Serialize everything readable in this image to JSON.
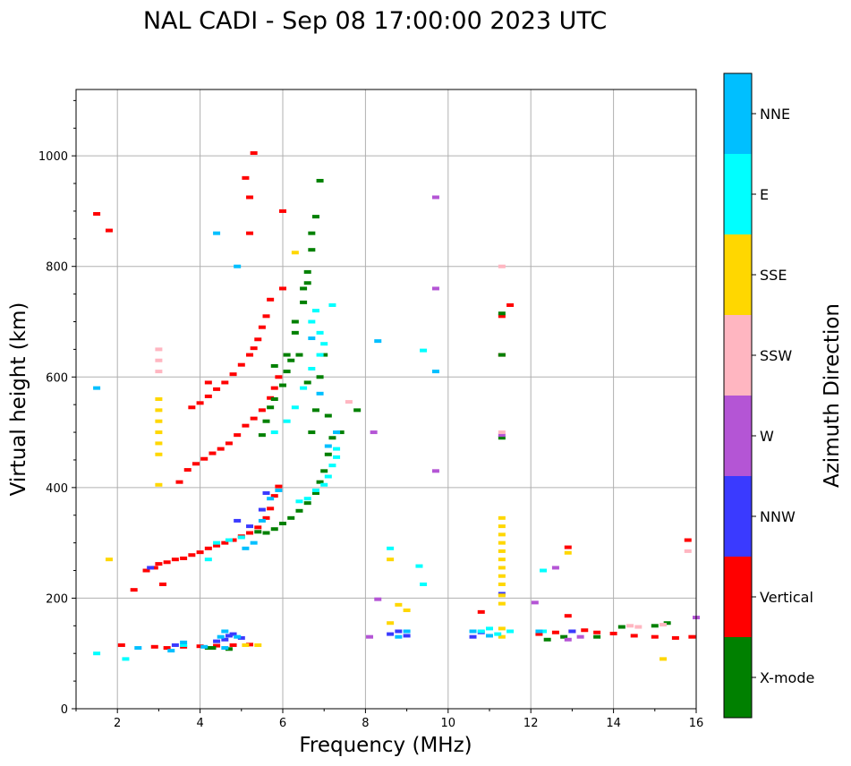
{
  "chart_data": {
    "type": "scatter",
    "title": "NAL CADI - Sep 08 17:00:00 2023 UTC",
    "xlabel": "Frequency (MHz)",
    "ylabel": "Virtual height (km)",
    "xlim": [
      1,
      16
    ],
    "ylim": [
      0,
      1120
    ],
    "xticks": [
      2,
      4,
      6,
      8,
      10,
      12,
      14,
      16
    ],
    "xtick_labels": [
      "2",
      "4",
      "6",
      "8",
      "10",
      "12",
      "14",
      "16"
    ],
    "yticks": [
      0,
      200,
      400,
      600,
      800,
      1000
    ],
    "ytick_labels": [
      "0",
      "200",
      "400",
      "600",
      "800",
      "1000"
    ],
    "grid": true,
    "colorbar": {
      "title": "Azimuth Direction",
      "categories": [
        "X-mode",
        "Vertical",
        "NNW",
        "W",
        "SSW",
        "SSE",
        "E",
        "NNE"
      ],
      "colors": {
        "X-mode": "#008000",
        "Vertical": "#ff0000",
        "NNW": "#3a3aff",
        "W": "#b455d5",
        "SSW": "#ffb6c1",
        "SSE": "#ffd700",
        "E": "#00ffff",
        "NNE": "#00bfff"
      }
    },
    "series": [
      {
        "name": "Vertical",
        "points": [
          [
            1.5,
            895
          ],
          [
            1.8,
            865
          ],
          [
            2.1,
            115
          ],
          [
            2.4,
            215
          ],
          [
            2.7,
            250
          ],
          [
            2.9,
            255
          ],
          [
            3.0,
            262
          ],
          [
            3.2,
            265
          ],
          [
            3.4,
            270
          ],
          [
            3.6,
            272
          ],
          [
            3.8,
            278
          ],
          [
            4.0,
            283
          ],
          [
            4.2,
            290
          ],
          [
            4.4,
            295
          ],
          [
            4.6,
            300
          ],
          [
            4.8,
            305
          ],
          [
            5.0,
            312
          ],
          [
            5.2,
            318
          ],
          [
            5.4,
            328
          ],
          [
            5.6,
            345
          ],
          [
            5.7,
            362
          ],
          [
            5.8,
            385
          ],
          [
            5.9,
            402
          ],
          [
            3.1,
            225
          ],
          [
            3.5,
            410
          ],
          [
            3.7,
            432
          ],
          [
            3.9,
            443
          ],
          [
            4.1,
            452
          ],
          [
            4.3,
            462
          ],
          [
            4.5,
            470
          ],
          [
            4.7,
            480
          ],
          [
            4.9,
            495
          ],
          [
            5.1,
            512
          ],
          [
            5.3,
            525
          ],
          [
            5.5,
            540
          ],
          [
            5.7,
            562
          ],
          [
            5.8,
            580
          ],
          [
            5.9,
            600
          ],
          [
            3.8,
            545
          ],
          [
            4.0,
            553
          ],
          [
            4.2,
            565
          ],
          [
            4.4,
            578
          ],
          [
            4.6,
            590
          ],
          [
            4.8,
            605
          ],
          [
            5.0,
            622
          ],
          [
            5.2,
            640
          ],
          [
            5.3,
            652
          ],
          [
            5.4,
            668
          ],
          [
            5.5,
            690
          ],
          [
            5.6,
            710
          ],
          [
            5.7,
            740
          ],
          [
            2.9,
            112
          ],
          [
            3.2,
            110
          ],
          [
            3.6,
            112
          ],
          [
            4.0,
            113
          ],
          [
            4.4,
            114
          ],
          [
            4.8,
            115
          ],
          [
            5.2,
            116
          ],
          [
            5.1,
            960
          ],
          [
            5.2,
            925
          ],
          [
            5.3,
            1005
          ],
          [
            5.2,
            860
          ],
          [
            6.0,
            900
          ],
          [
            6.0,
            760
          ],
          [
            11.3,
            710
          ],
          [
            11.3,
            640
          ],
          [
            11.5,
            730
          ],
          [
            10.8,
            175
          ],
          [
            12.2,
            135
          ],
          [
            12.6,
            138
          ],
          [
            13.0,
            140
          ],
          [
            13.3,
            142
          ],
          [
            13.6,
            138
          ],
          [
            14.0,
            136
          ],
          [
            14.5,
            132
          ],
          [
            15.0,
            130
          ],
          [
            15.5,
            128
          ],
          [
            15.9,
            130
          ],
          [
            12.9,
            292
          ],
          [
            12.9,
            168
          ],
          [
            15.8,
            305
          ],
          [
            4.2,
            590
          ]
        ]
      },
      {
        "name": "X-mode",
        "points": [
          [
            6.1,
            640
          ],
          [
            6.3,
            680
          ],
          [
            6.5,
            735
          ],
          [
            6.6,
            790
          ],
          [
            6.7,
            830
          ],
          [
            6.7,
            860
          ],
          [
            6.9,
            955
          ],
          [
            6.8,
            890
          ],
          [
            5.4,
            320
          ],
          [
            5.6,
            318
          ],
          [
            5.8,
            325
          ],
          [
            6.0,
            335
          ],
          [
            6.2,
            345
          ],
          [
            6.4,
            358
          ],
          [
            6.6,
            372
          ],
          [
            6.8,
            390
          ],
          [
            6.9,
            410
          ],
          [
            7.0,
            430
          ],
          [
            7.1,
            460
          ],
          [
            7.2,
            490
          ],
          [
            5.5,
            495
          ],
          [
            5.6,
            520
          ],
          [
            5.7,
            545
          ],
          [
            5.8,
            560
          ],
          [
            6.0,
            585
          ],
          [
            6.1,
            610
          ],
          [
            6.2,
            630
          ],
          [
            5.8,
            620
          ],
          [
            6.3,
            700
          ],
          [
            6.5,
            760
          ],
          [
            6.6,
            770
          ],
          [
            6.9,
            600
          ],
          [
            7.0,
            640
          ],
          [
            7.1,
            530
          ],
          [
            7.4,
            500
          ],
          [
            7.8,
            540
          ],
          [
            6.7,
            500
          ],
          [
            6.8,
            540
          ],
          [
            4.2,
            110
          ],
          [
            4.3,
            110
          ],
          [
            4.7,
            108
          ],
          [
            11.3,
            490
          ],
          [
            11.3,
            640
          ],
          [
            11.3,
            715
          ],
          [
            12.4,
            125
          ],
          [
            12.8,
            130
          ],
          [
            13.6,
            130
          ],
          [
            14.2,
            148
          ],
          [
            15.0,
            150
          ],
          [
            15.3,
            155
          ],
          [
            6.6,
            590
          ],
          [
            6.4,
            640
          ]
        ]
      },
      {
        "name": "NNW",
        "points": [
          [
            2.8,
            255
          ],
          [
            4.6,
            125
          ],
          [
            4.7,
            132
          ],
          [
            4.8,
            135
          ],
          [
            5.0,
            128
          ],
          [
            4.4,
            122
          ],
          [
            4.9,
            340
          ],
          [
            5.2,
            330
          ],
          [
            5.5,
            360
          ],
          [
            5.6,
            390
          ],
          [
            3.4,
            115
          ],
          [
            8.6,
            135
          ],
          [
            8.8,
            140
          ],
          [
            9.0,
            132
          ],
          [
            10.6,
            130
          ],
          [
            10.8,
            138
          ],
          [
            11.3,
            208
          ],
          [
            13.0,
            140
          ]
        ]
      },
      {
        "name": "W",
        "points": [
          [
            9.7,
            925
          ],
          [
            9.7,
            760
          ],
          [
            9.7,
            430
          ],
          [
            8.2,
            500
          ],
          [
            8.3,
            198
          ],
          [
            8.1,
            130
          ],
          [
            11.3,
            495
          ],
          [
            12.1,
            192
          ],
          [
            12.6,
            255
          ],
          [
            12.9,
            125
          ],
          [
            13.2,
            130
          ],
          [
            16.0,
            165
          ]
        ]
      },
      {
        "name": "SSW",
        "points": [
          [
            3.0,
            650
          ],
          [
            3.0,
            630
          ],
          [
            3.0,
            610
          ],
          [
            11.3,
            800
          ],
          [
            11.3,
            500
          ],
          [
            14.4,
            150
          ],
          [
            14.6,
            148
          ],
          [
            15.2,
            152
          ],
          [
            15.8,
            285
          ],
          [
            7.6,
            555
          ]
        ]
      },
      {
        "name": "SSE",
        "points": [
          [
            3.0,
            560
          ],
          [
            3.0,
            540
          ],
          [
            3.0,
            520
          ],
          [
            3.0,
            500
          ],
          [
            3.0,
            480
          ],
          [
            3.0,
            460
          ],
          [
            3.0,
            405
          ],
          [
            1.8,
            270
          ],
          [
            6.3,
            825
          ],
          [
            8.6,
            155
          ],
          [
            8.6,
            270
          ],
          [
            8.8,
            188
          ],
          [
            9.0,
            178
          ],
          [
            11.3,
            345
          ],
          [
            11.3,
            330
          ],
          [
            11.3,
            315
          ],
          [
            11.3,
            300
          ],
          [
            11.3,
            285
          ],
          [
            11.3,
            270
          ],
          [
            11.3,
            255
          ],
          [
            11.3,
            240
          ],
          [
            11.3,
            225
          ],
          [
            11.3,
            205
          ],
          [
            11.3,
            190
          ],
          [
            11.3,
            145
          ],
          [
            11.3,
            130
          ],
          [
            12.9,
            282
          ],
          [
            15.2,
            90
          ],
          [
            5.1,
            115
          ],
          [
            5.4,
            115
          ]
        ]
      },
      {
        "name": "E",
        "points": [
          [
            6.4,
            375
          ],
          [
            6.6,
            380
          ],
          [
            6.8,
            395
          ],
          [
            7.0,
            405
          ],
          [
            7.1,
            420
          ],
          [
            7.2,
            440
          ],
          [
            7.3,
            455
          ],
          [
            7.3,
            470
          ],
          [
            5.8,
            500
          ],
          [
            6.1,
            520
          ],
          [
            6.3,
            545
          ],
          [
            6.5,
            580
          ],
          [
            6.7,
            615
          ],
          [
            6.9,
            640
          ],
          [
            7.0,
            660
          ],
          [
            6.9,
            680
          ],
          [
            4.4,
            300
          ],
          [
            4.7,
            305
          ],
          [
            5.0,
            310
          ],
          [
            8.6,
            290
          ],
          [
            9.3,
            258
          ],
          [
            9.4,
            225
          ],
          [
            9.4,
            648
          ],
          [
            10.8,
            140
          ],
          [
            11.0,
            145
          ],
          [
            11.2,
            135
          ],
          [
            11.5,
            140
          ],
          [
            12.3,
            140
          ],
          [
            12.3,
            250
          ],
          [
            2.2,
            90
          ],
          [
            1.5,
            100
          ],
          [
            6.7,
            700
          ],
          [
            6.8,
            720
          ],
          [
            7.2,
            730
          ],
          [
            4.2,
            270
          ],
          [
            3.6,
            115
          ]
        ]
      },
      {
        "name": "NNE",
        "points": [
          [
            1.5,
            580
          ],
          [
            4.4,
            860
          ],
          [
            4.9,
            800
          ],
          [
            6.7,
            670
          ],
          [
            6.9,
            570
          ],
          [
            7.3,
            500
          ],
          [
            7.1,
            475
          ],
          [
            9.7,
            610
          ],
          [
            8.3,
            665
          ],
          [
            4.5,
            130
          ],
          [
            4.6,
            140
          ],
          [
            4.9,
            130
          ],
          [
            5.1,
            290
          ],
          [
            5.3,
            300
          ],
          [
            5.5,
            340
          ],
          [
            5.7,
            380
          ],
          [
            5.9,
            395
          ],
          [
            2.5,
            110
          ],
          [
            3.3,
            105
          ],
          [
            3.6,
            120
          ],
          [
            4.1,
            112
          ],
          [
            4.6,
            110
          ],
          [
            8.8,
            130
          ],
          [
            9.0,
            140
          ],
          [
            10.6,
            140
          ],
          [
            11.0,
            132
          ],
          [
            12.2,
            140
          ]
        ]
      }
    ]
  }
}
